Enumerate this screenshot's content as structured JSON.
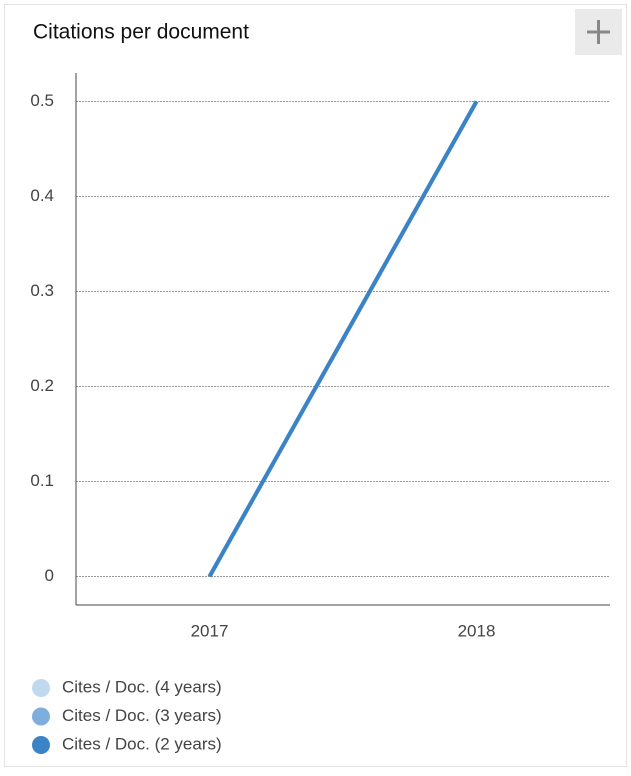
{
  "chart_data": {
    "type": "line",
    "title": "Citations per document",
    "categories": [
      "2017",
      "2018"
    ],
    "series": [
      {
        "name": "Cites / Doc. (4 years)",
        "color": "#c0d9ef",
        "values": [
          0,
          0.5
        ]
      },
      {
        "name": "Cites / Doc. (3 years)",
        "color": "#7eaedc",
        "values": [
          0,
          0.5
        ]
      },
      {
        "name": "Cites / Doc. (2 years)",
        "color": "#3a83c6",
        "values": [
          0,
          0.5
        ]
      }
    ],
    "ylim": [
      -0.03,
      0.53
    ],
    "yticks": [
      0,
      0.1,
      0.2,
      0.3,
      0.4,
      0.5
    ],
    "grid": true,
    "legend": "bottom"
  }
}
